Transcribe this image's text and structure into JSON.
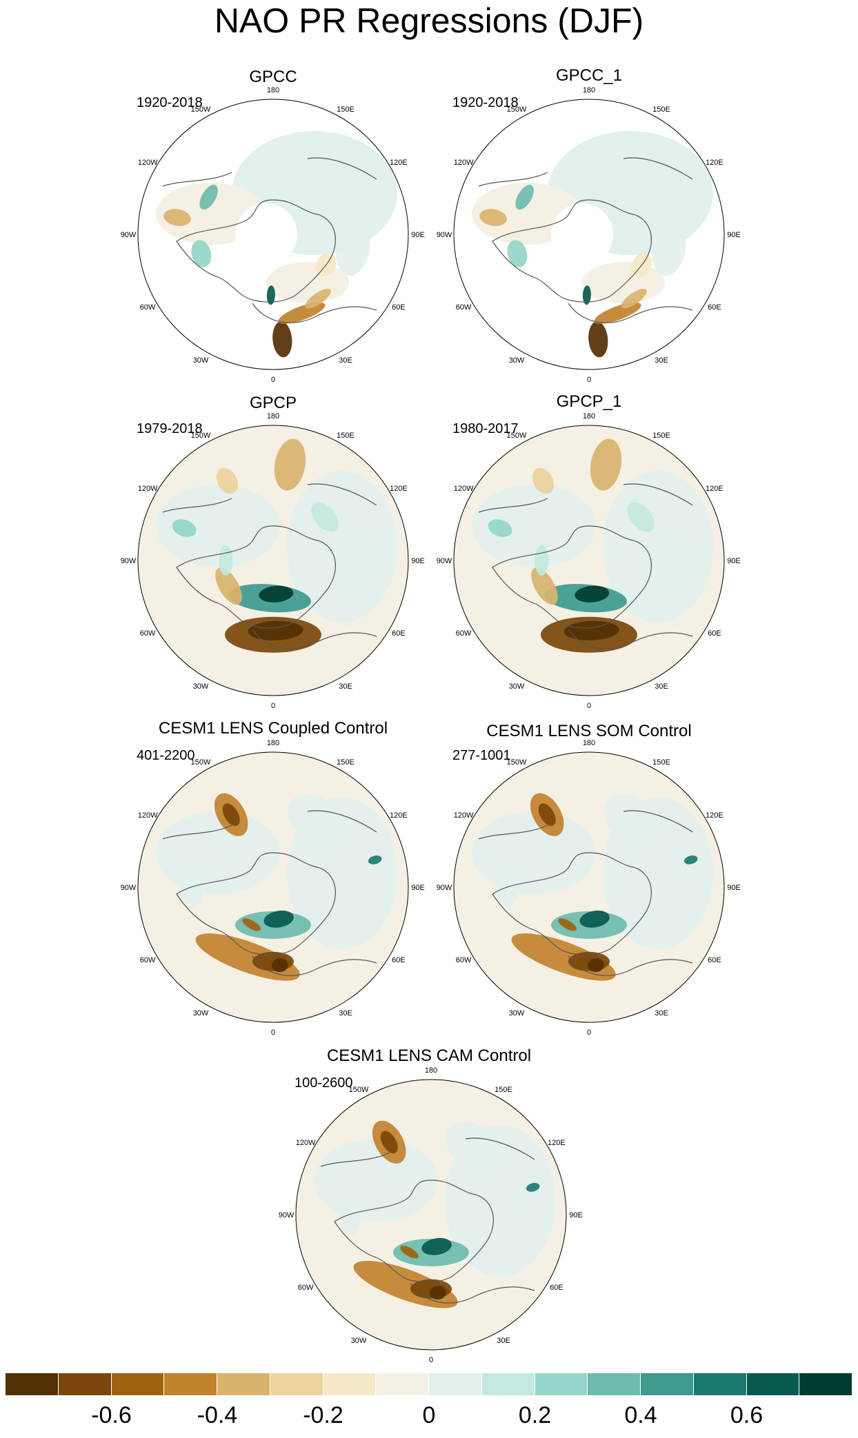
{
  "title": "NAO PR Regressions (DJF)",
  "panels": [
    {
      "title": "GPCC",
      "period": "1920-2018"
    },
    {
      "title": "GPCC_1",
      "period": "1920-2018"
    },
    {
      "title": "GPCP",
      "period": "1979-2018"
    },
    {
      "title": "GPCP_1",
      "period": "1980-2017"
    },
    {
      "title": "CESM1 LENS Coupled Control",
      "period": "401-2200"
    },
    {
      "title": "CESM1 LENS SOM Control",
      "period": "277-1001"
    },
    {
      "title": "CESM1 LENS CAM Control",
      "period": "100-2600"
    }
  ],
  "longitude_labels": [
    "180",
    "150E",
    "120E",
    "90E",
    "60E",
    "30E",
    "0",
    "30W",
    "60W",
    "90W",
    "120W",
    "150W"
  ],
  "colorbar": {
    "colors": [
      "#543005",
      "#7a4609",
      "#a0620f",
      "#c1822e",
      "#d9b36e",
      "#ebd39e",
      "#f5e8c6",
      "#f5f0e4",
      "#e2f0ee",
      "#c3e8e1",
      "#93d6c9",
      "#6bbcae",
      "#3c9a8e",
      "#1b7a6f",
      "#085a50",
      "#003c30"
    ],
    "tick_labels": [
      "-0.6",
      "-0.4",
      "-0.2",
      "0",
      "0.2",
      "0.4",
      "0.6"
    ],
    "tick_values": [
      -0.6,
      -0.4,
      -0.2,
      0,
      0.2,
      0.4,
      0.6
    ]
  }
}
